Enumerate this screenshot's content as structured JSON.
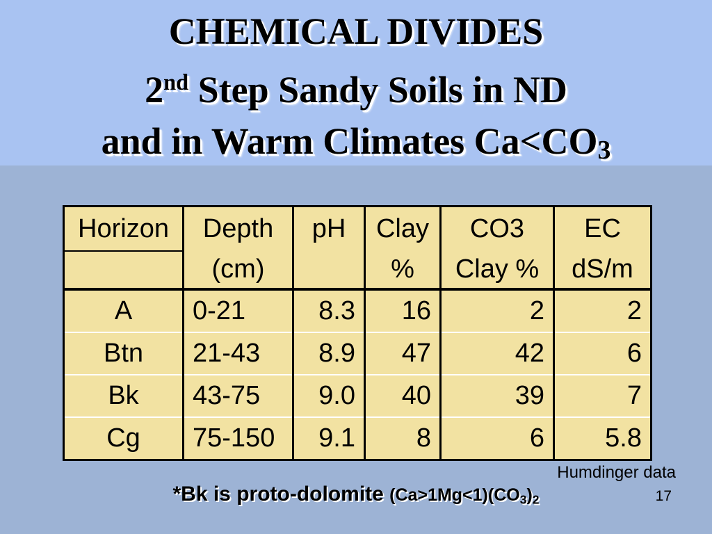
{
  "title": {
    "line1": "CHEMICAL DIVIDES",
    "line2_pre": "2",
    "line2_sup": "nd",
    "line2_post": " Step Sandy Soils in ND",
    "line3_pre": "and in Warm Climates Ca<CO",
    "line3_sub": "3"
  },
  "table": {
    "header_row1": [
      "Horizon",
      "Depth",
      "pH",
      "Clay",
      "CO3",
      "EC"
    ],
    "header_row2": [
      "",
      "(cm)",
      "",
      "%",
      "Clay %",
      "dS/m"
    ],
    "rows": [
      [
        "A",
        "0-21",
        "8.3",
        "16",
        "2",
        "2"
      ],
      [
        "Btn",
        "21-43",
        "8.9",
        "47",
        "42",
        "6"
      ],
      [
        "Bk",
        "43-75",
        "9.0",
        "40",
        "39",
        "7"
      ],
      [
        "Cg",
        "75-150",
        "9.1",
        "8",
        "6",
        "5.8"
      ]
    ]
  },
  "footer": {
    "credit": "Humdinger data",
    "note_text": "*Bk is proto-dolomite ",
    "formula_pre": "(Ca>1Mg<1)(CO",
    "formula_sub1": "3",
    "formula_close": ")",
    "formula_sub2": "2",
    "page_number": "17"
  },
  "colors": {
    "slide_background": "#9db3d5",
    "title_band": "#a9c3f2",
    "table_fill": "#f2e2a2",
    "text": "#000000"
  }
}
